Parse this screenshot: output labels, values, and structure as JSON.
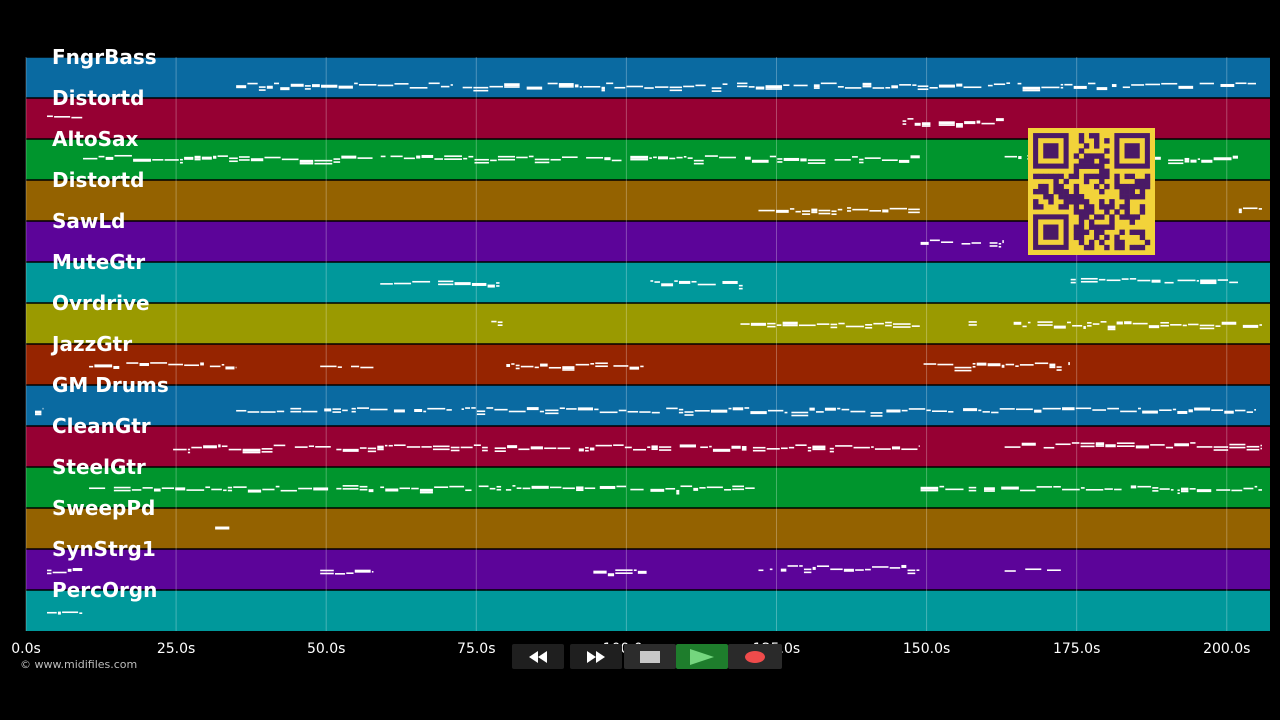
{
  "tracks": [
    {
      "name": "FngrBass",
      "color": "#0a6aa1",
      "notes": [
        [
          35.0,
          205.0,
          0.68
        ]
      ]
    },
    {
      "name": "Distortd",
      "color": "#960033",
      "notes": [
        [
          3.5,
          9.5,
          0.45
        ],
        [
          146.0,
          163.0,
          0.55
        ]
      ]
    },
    {
      "name": "AltoSax",
      "color": "#00952d",
      "notes": [
        [
          9.5,
          149.0,
          0.45
        ],
        [
          163.0,
          202.0,
          0.45
        ]
      ]
    },
    {
      "name": "Distortd",
      "color": "#946200",
      "notes": [
        [
          122.0,
          149.0,
          0.7
        ],
        [
          202.0,
          206.0,
          0.65
        ]
      ]
    },
    {
      "name": "SawLd",
      "color": "#5c0499",
      "notes": [
        [
          149.0,
          163.0,
          0.5
        ]
      ]
    },
    {
      "name": "MuteGtr",
      "color": "#00989b",
      "notes": [
        [
          59.0,
          79.0,
          0.5
        ],
        [
          104.0,
          119.5,
          0.5
        ],
        [
          174.0,
          202.0,
          0.45
        ]
      ]
    },
    {
      "name": "Ovrdrive",
      "color": "#9a9a00",
      "notes": [
        [
          77.5,
          79.5,
          0.48
        ],
        [
          119.0,
          149.0,
          0.5
        ],
        [
          157.0,
          158.5,
          0.48
        ],
        [
          164.5,
          206.0,
          0.5
        ]
      ]
    },
    {
      "name": "JazzGtr",
      "color": "#962400",
      "notes": [
        [
          10.5,
          35.0,
          0.5
        ],
        [
          49.0,
          58.0,
          0.5
        ],
        [
          80.0,
          103.0,
          0.5
        ],
        [
          149.5,
          174.0,
          0.5
        ]
      ]
    },
    {
      "name": "GM Drums",
      "color": "#0a6aa1",
      "notes": [
        [
          1.5,
          3.0,
          0.6
        ],
        [
          35.0,
          205.0,
          0.6
        ]
      ]
    },
    {
      "name": "CleanGtr",
      "color": "#960033",
      "notes": [
        [
          24.5,
          149.0,
          0.5
        ],
        [
          163.0,
          206.0,
          0.45
        ]
      ]
    },
    {
      "name": "SteelGtr",
      "color": "#00952d",
      "notes": [
        [
          10.5,
          58.0,
          0.5
        ],
        [
          59.0,
          103.0,
          0.5
        ],
        [
          104.0,
          121.5,
          0.5
        ],
        [
          149.0,
          206.0,
          0.5
        ]
      ]
    },
    {
      "name": "SweepPd",
      "color": "#946200",
      "notes": [
        [
          31.5,
          34.0,
          0.45
        ]
      ]
    },
    {
      "name": "SynStrg1",
      "color": "#5c0499",
      "notes": [
        [
          3.5,
          9.5,
          0.52
        ],
        [
          49.0,
          58.0,
          0.55
        ],
        [
          94.5,
          103.5,
          0.55
        ],
        [
          122.0,
          149.0,
          0.45
        ],
        [
          163.0,
          172.5,
          0.52
        ]
      ]
    },
    {
      "name": "PercOrgn",
      "color": "#00989b",
      "notes": [
        [
          3.5,
          9.5,
          0.5
        ]
      ]
    }
  ],
  "time_axis": {
    "min_s": 0,
    "max_s": 207.2,
    "ticks": [
      0,
      25,
      50,
      75,
      100,
      125,
      150,
      175,
      200
    ],
    "tick_labels": [
      "0.0s",
      "25.0s",
      "50.0s",
      "75.0s",
      "100.0s",
      "125.0s",
      "150.0s",
      "175.0s",
      "200.0s"
    ]
  },
  "copyright": "© www.midifiles.com",
  "controls": {
    "rewind_icon": "rewind-icon",
    "fast_forward_icon": "fast-forward-icon",
    "stop_icon": "stop-icon",
    "play_icon": "play-icon",
    "record_icon": "record-icon"
  },
  "qr_code": {
    "icon": "qr-code-icon",
    "fg": "#4a1a66",
    "bg": "#f2d33a"
  },
  "colors": {
    "background": "#000000",
    "tick_text": "#ffffff",
    "track_label": "#ffffff",
    "note": "#ffffff"
  }
}
